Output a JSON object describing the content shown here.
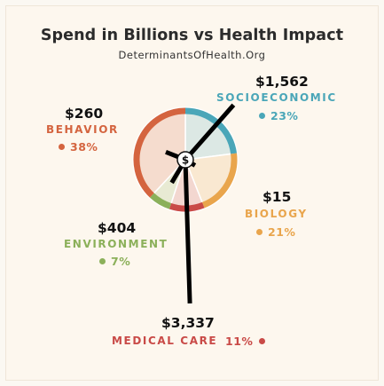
{
  "header": {
    "title": "Spend in Billions vs Health Impact",
    "subtitle": "DeterminantsOfHealth.Org"
  },
  "center_icon": "$",
  "chart_data": {
    "type": "pie",
    "title": "Spend in Billions vs Health Impact",
    "subtitle": "DeterminantsOfHealth.Org",
    "categories": [
      "SOCIOECONOMIC",
      "BIOLOGY",
      "MEDICAL CARE",
      "ENVIRONMENT",
      "BEHAVIOR"
    ],
    "series": [
      {
        "name": "Health Impact",
        "values": [
          23,
          21,
          11,
          7,
          38
        ],
        "labels": [
          "23%",
          "21%",
          "11%",
          "7%",
          "38%"
        ]
      },
      {
        "name": "Spend in Billions",
        "values": [
          1562,
          15,
          3337,
          404,
          260
        ],
        "labels": [
          "$1,562",
          "$15",
          "$3,337",
          "$404",
          "$260"
        ]
      }
    ],
    "colors": [
      "#4aa6b8",
      "#e9a54c",
      "#c94a47",
      "#8bb05a",
      "#d4643f"
    ],
    "icons": [
      "teal-pie-icon",
      "orange-heart-icon",
      "red-drop-icon",
      "green-leaf-icon",
      "red-bottle-icon"
    ]
  }
}
